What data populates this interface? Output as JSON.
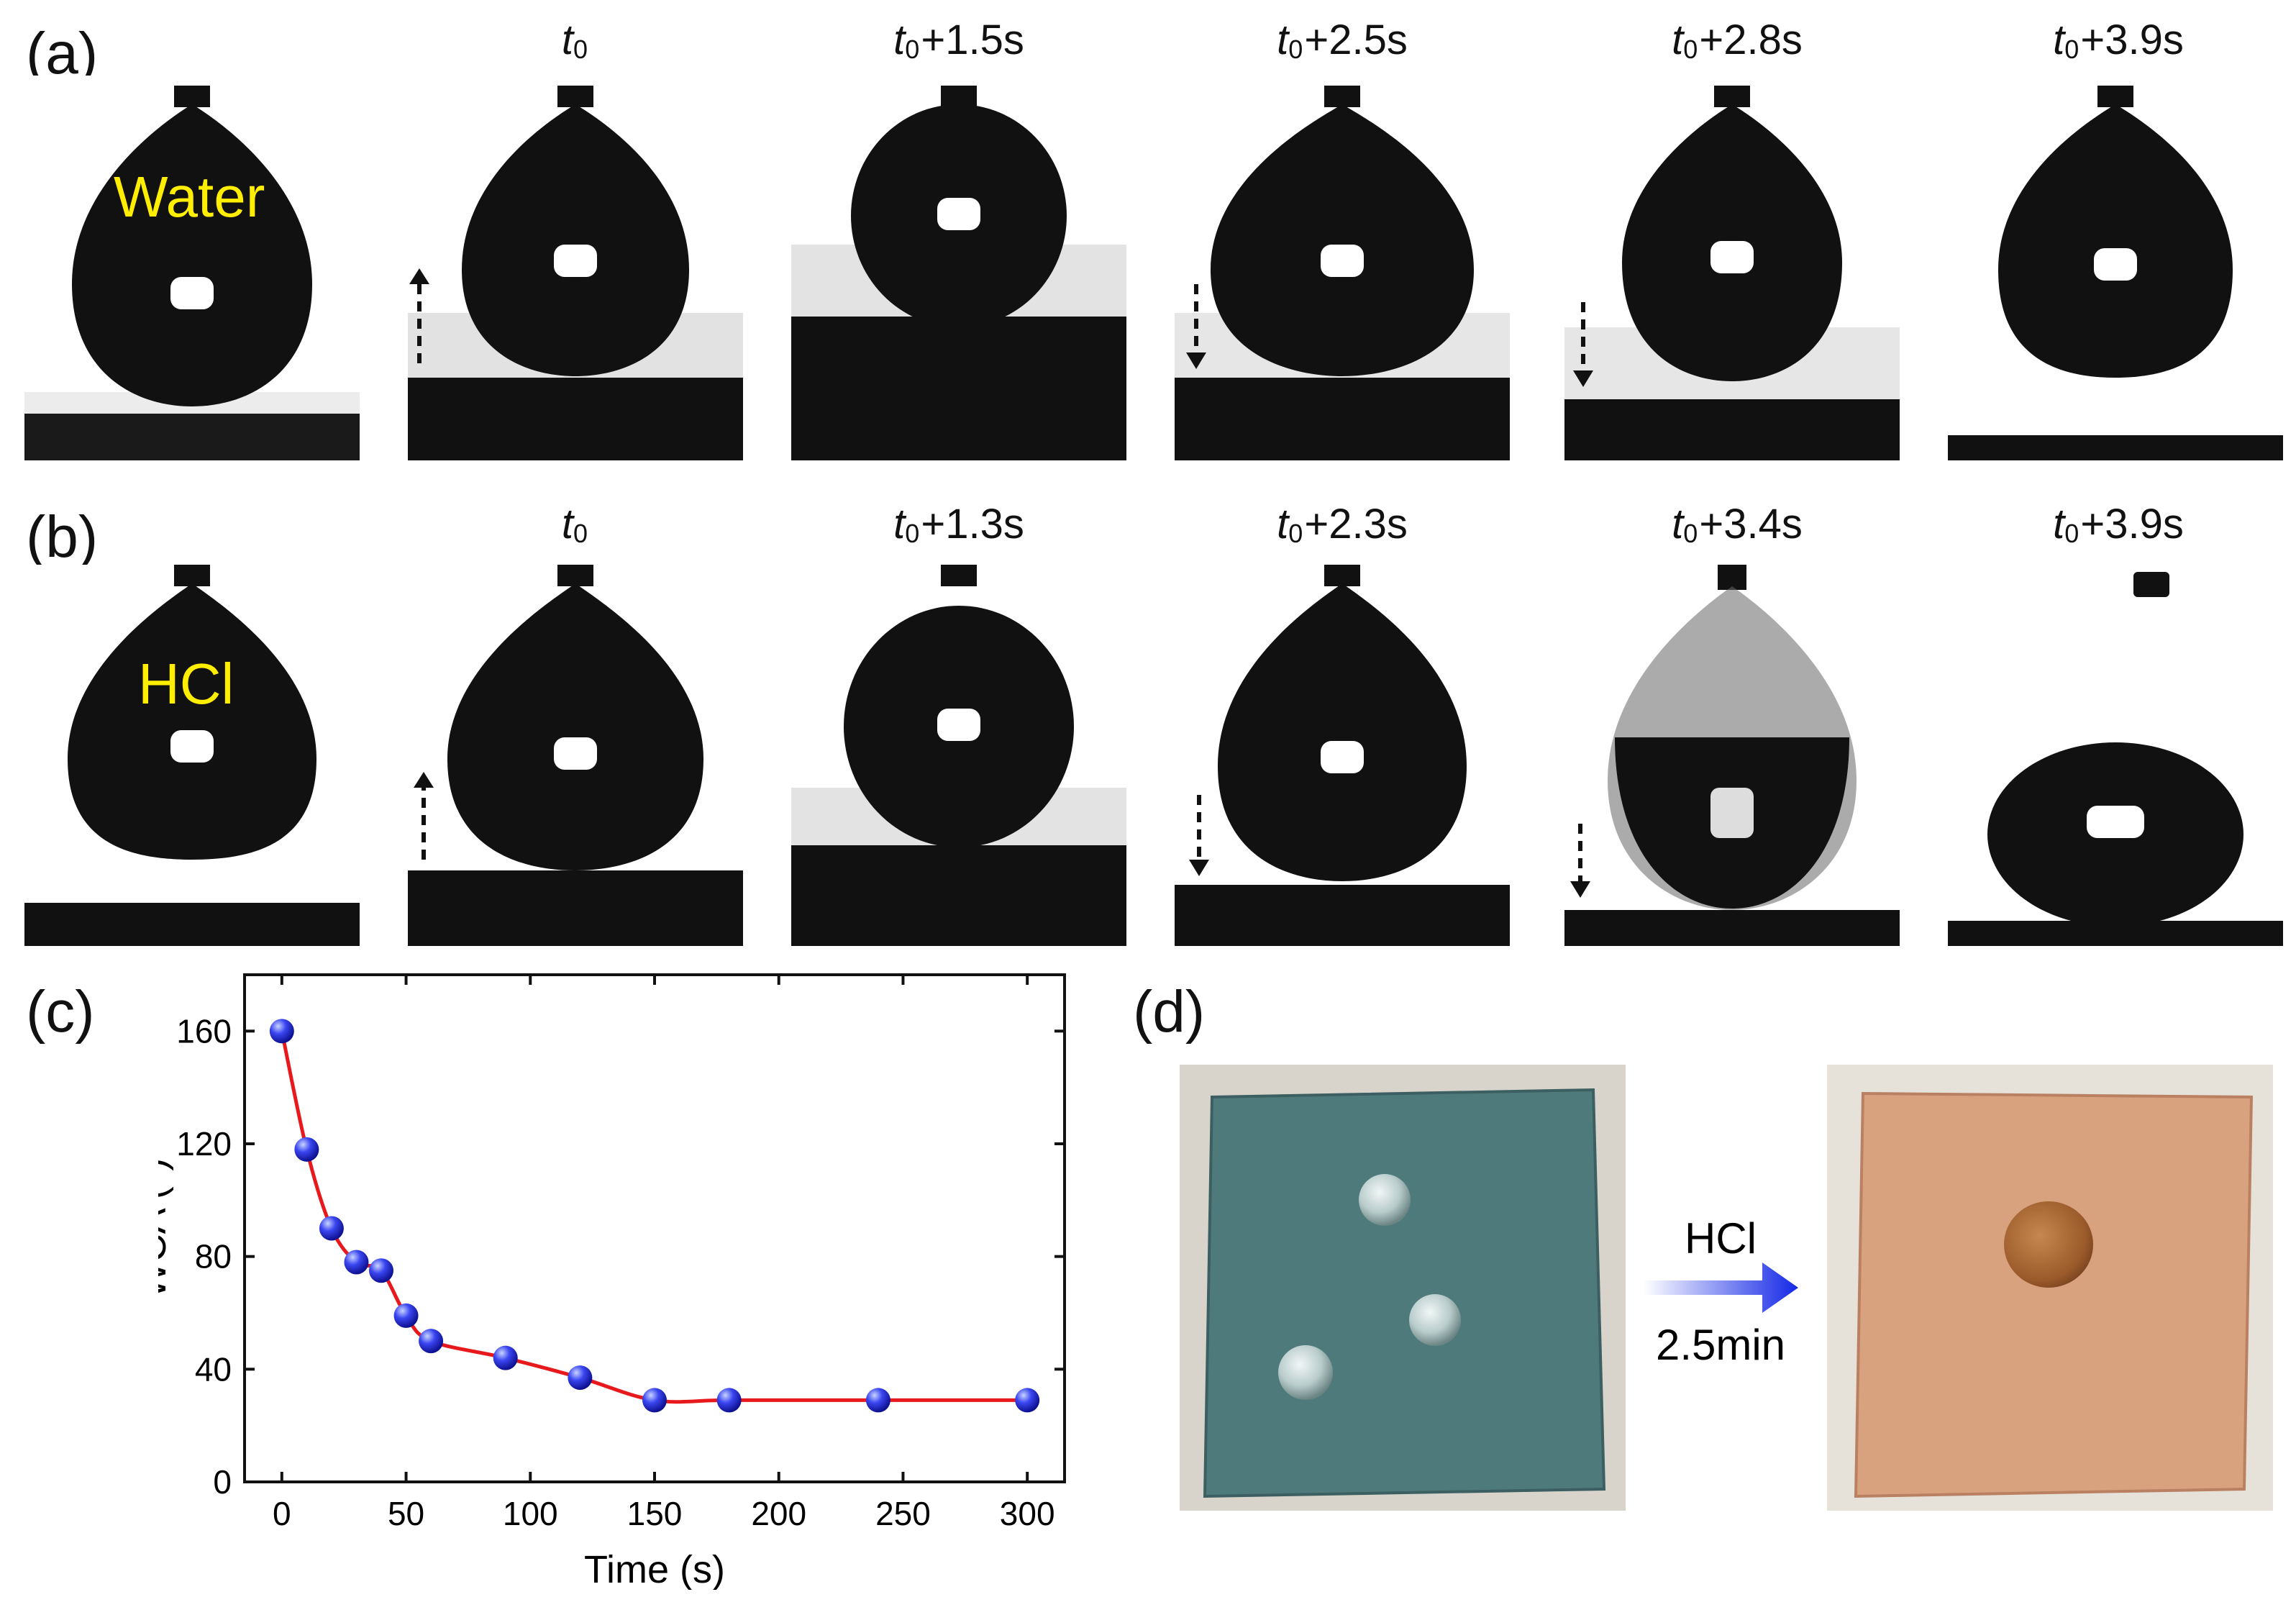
{
  "panels": {
    "a": {
      "letter": "(a)",
      "liquid": "Water",
      "times": [
        {
          "base": "t",
          "sub": "0",
          "offset": ""
        },
        {
          "base": "t",
          "sub": "0",
          "offset": "+1.5s"
        },
        {
          "base": "t",
          "sub": "0",
          "offset": "+2.5s"
        },
        {
          "base": "t",
          "sub": "0",
          "offset": "+2.8s"
        },
        {
          "base": "t",
          "sub": "0",
          "offset": "+3.9s"
        }
      ]
    },
    "b": {
      "letter": "(b)",
      "liquid": "HCl",
      "times": [
        {
          "base": "t",
          "sub": "0",
          "offset": ""
        },
        {
          "base": "t",
          "sub": "0",
          "offset": "+1.3s"
        },
        {
          "base": "t",
          "sub": "0",
          "offset": "+2.3s"
        },
        {
          "base": "t",
          "sub": "0",
          "offset": "+3.4s"
        },
        {
          "base": "t",
          "sub": "0",
          "offset": "+3.9s"
        }
      ]
    },
    "c": {
      "letter": "(c)"
    },
    "d": {
      "letter": "(d)",
      "arrow_top": "HCl",
      "arrow_bottom": "2.5min"
    }
  },
  "colors": {
    "liquid_label": "#ffee00",
    "line": "#e8191c",
    "marker": "#2222dd",
    "arrow": "#1428e6",
    "mesh_plate": "#4f7a7c",
    "copper_plate": "#d8a27e"
  },
  "chart_data": {
    "type": "line",
    "xlabel": "Time (s)",
    "ylabel": "WCA (°)",
    "xlim": [
      -15,
      315
    ],
    "ylim": [
      0,
      180
    ],
    "xticks": [
      0,
      50,
      100,
      150,
      200,
      250,
      300
    ],
    "yticks": [
      0,
      40,
      80,
      120,
      160
    ],
    "series": [
      {
        "x": [
          0,
          10,
          20,
          30,
          40,
          50,
          60,
          90,
          120,
          150,
          180,
          240,
          300
        ],
        "y": [
          160,
          118,
          90,
          78,
          75,
          59,
          50,
          44,
          37,
          29,
          29,
          29,
          29
        ]
      }
    ]
  }
}
